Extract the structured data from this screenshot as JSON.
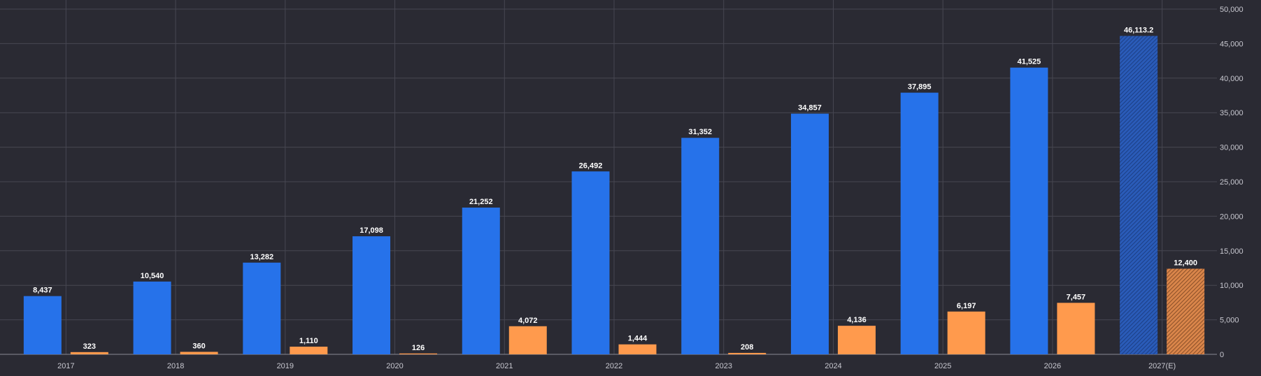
{
  "chart_data": {
    "type": "bar",
    "categories": [
      "2017",
      "2018",
      "2019",
      "2020",
      "2021",
      "2022",
      "2023",
      "2024",
      "2025",
      "2026",
      "2027(E)"
    ],
    "series": [
      {
        "color": "#2672ea",
        "values": [
          8437,
          10540,
          13282,
          17098,
          21252,
          26492,
          31352,
          34857,
          37895,
          41525,
          46113.2
        ],
        "labels": [
          "8,437",
          "10,540",
          "13,282",
          "17,098",
          "21,252",
          "26,492",
          "31,352",
          "34,857",
          "37,895",
          "41,525",
          "46,113.2"
        ]
      },
      {
        "color": "#ff9a4d",
        "values": [
          323,
          360,
          1110,
          126,
          4072,
          1444,
          208,
          4136,
          6197,
          7457,
          12400
        ],
        "labels": [
          "323",
          "360",
          "1,110",
          "126",
          "4,072",
          "1,444",
          "208",
          "4,136",
          "6,197",
          "7,457",
          "12,400"
        ]
      }
    ],
    "estimated_categories": [
      "2027(E)"
    ],
    "estimate_style": "hatched",
    "ylim": [
      0,
      50000
    ],
    "yticks": [
      0,
      5000,
      10000,
      15000,
      20000,
      25000,
      30000,
      35000,
      40000,
      45000,
      50000
    ],
    "ytick_labels": [
      "0",
      "5,000",
      "10,000",
      "15,000",
      "20,000",
      "25,000",
      "30,000",
      "35,000",
      "40,000",
      "45,000",
      "50,000"
    ],
    "y_axis_side": "right",
    "grid": true,
    "title": "",
    "xlabel": "",
    "ylabel": "",
    "colors": {
      "background": "#2a2a33",
      "grid": "#474752",
      "text": "#c8c8d0",
      "label": "#ffffff"
    }
  }
}
